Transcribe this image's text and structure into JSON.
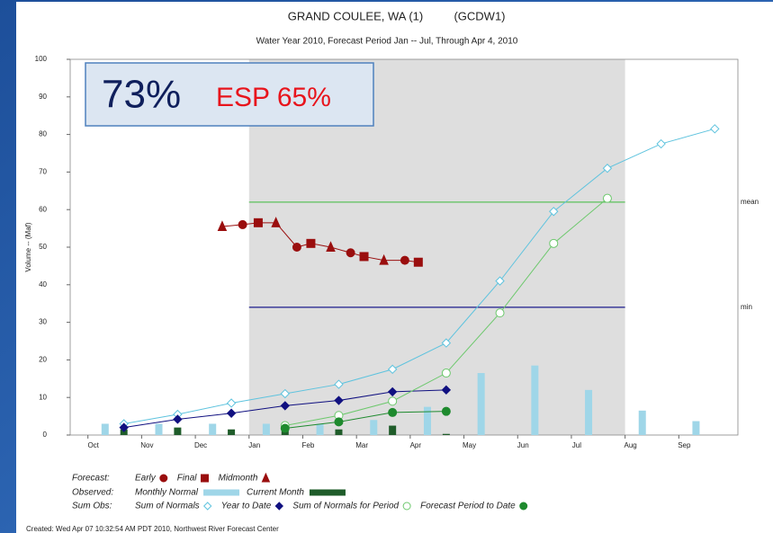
{
  "chart_data": {
    "type": "line",
    "title": "GRAND COULEE, WA (1)",
    "title_code": "(GCDW1)",
    "subtitle": "Water Year 2010,  Forecast Period  Jan -- Jul,    Through Apr 4, 2010",
    "ylabel": "Volume -- (Maf)",
    "annotation": {
      "main": "73%",
      "esp": "ESP 65%"
    },
    "footer": "Created: Wed Apr 07 10:32:54 AM PDT 2010, Northwest River Forecast Center",
    "categories": [
      "Oct",
      "Nov",
      "Dec",
      "Jan",
      "Feb",
      "Mar",
      "Apr",
      "May",
      "Jun",
      "Jul",
      "Aug",
      "Sep"
    ],
    "xlim": [
      -0.33,
      12.1
    ],
    "ylim": [
      0,
      100
    ],
    "yticks": [
      0,
      10,
      20,
      30,
      40,
      50,
      60,
      70,
      80,
      90,
      100
    ],
    "forecast_period": [
      3,
      10
    ],
    "reference_lines": [
      {
        "name": "mean",
        "value": 62,
        "color": "#5cc05c"
      },
      {
        "name": "min",
        "value": 34,
        "color": "#1c1c8c"
      }
    ],
    "series": [
      {
        "name": "Monthly Normal",
        "style": "bar",
        "color": "#9fd6e8",
        "x": [
          0.32,
          1.32,
          2.32,
          3.32,
          4.32,
          5.32,
          6.32,
          7.32,
          8.32,
          9.32,
          10.32,
          11.32
        ],
        "values": [
          3,
          3,
          3,
          3,
          3,
          4,
          7.5,
          16.5,
          18.5,
          12,
          6.5,
          3.7
        ]
      },
      {
        "name": "Current Month",
        "style": "bar",
        "color": "#1f5c2a",
        "x": [
          0.67,
          1.67,
          2.67,
          3.67,
          4.67,
          5.67,
          6.67
        ],
        "values": [
          1.5,
          2,
          1.5,
          2,
          1.5,
          2.5,
          0.3
        ]
      },
      {
        "name": "Sum of Normals",
        "style": "line",
        "marker": "diamond",
        "hollow": true,
        "color": "#5ec3de",
        "x": [
          0.67,
          1.67,
          2.67,
          3.67,
          4.67,
          5.67,
          6.67,
          7.67,
          8.67,
          9.67,
          10.67,
          11.67
        ],
        "values": [
          3,
          5.5,
          8.5,
          11,
          13.5,
          17.5,
          24.5,
          41,
          59.5,
          71,
          77.5,
          81.5
        ]
      },
      {
        "name": "Year to Date",
        "style": "line",
        "marker": "diamond",
        "hollow": false,
        "color": "#101080",
        "x": [
          0.67,
          1.67,
          2.67,
          3.67,
          4.67,
          5.67,
          6.67
        ],
        "values": [
          2,
          4.2,
          5.8,
          7.8,
          9.2,
          11.5,
          12
        ]
      },
      {
        "name": "Sum of Normals for Period",
        "style": "line",
        "marker": "circle",
        "hollow": true,
        "color": "#6cc86c",
        "x": [
          3.67,
          4.67,
          5.67,
          6.67,
          7.67,
          8.67,
          9.67
        ],
        "values": [
          2.5,
          5.2,
          9,
          16.5,
          32.5,
          51,
          63
        ]
      },
      {
        "name": "Forecast Period to Date",
        "style": "line",
        "marker": "circle",
        "hollow": false,
        "color": "#1e8a2e",
        "x": [
          3.67,
          4.67,
          5.67,
          6.67
        ],
        "values": [
          1.8,
          3.5,
          6,
          6.3
        ]
      },
      {
        "style": "line",
        "color": "#9a0e0e",
        "markers": [
          "triangle",
          "circle",
          "square",
          "triangle",
          "circle",
          "square",
          "triangle",
          "circle",
          "square",
          "triangle",
          "circle",
          "square"
        ],
        "x": [
          2.5,
          2.88,
          3.17,
          3.5,
          3.89,
          4.15,
          4.52,
          4.89,
          5.14,
          5.51,
          5.9,
          6.15
        ],
        "values": [
          55.5,
          56,
          56.5,
          56.5,
          50,
          51,
          50,
          48.5,
          47.5,
          46.5,
          46.5,
          46
        ]
      }
    ],
    "legend": [
      {
        "heading": "Forecast:",
        "entries": [
          {
            "label": "Early",
            "marker": "circle",
            "color": "#9a0e0e"
          },
          {
            "label": "Final",
            "marker": "square",
            "color": "#9a0e0e"
          },
          {
            "label": "Midmonth",
            "marker": "triangle",
            "color": "#9a0e0e"
          }
        ]
      },
      {
        "heading": "Observed:",
        "series": [
          0,
          1
        ]
      },
      {
        "heading": "Sum Obs:",
        "series": [
          2,
          3,
          4,
          5
        ]
      }
    ]
  }
}
